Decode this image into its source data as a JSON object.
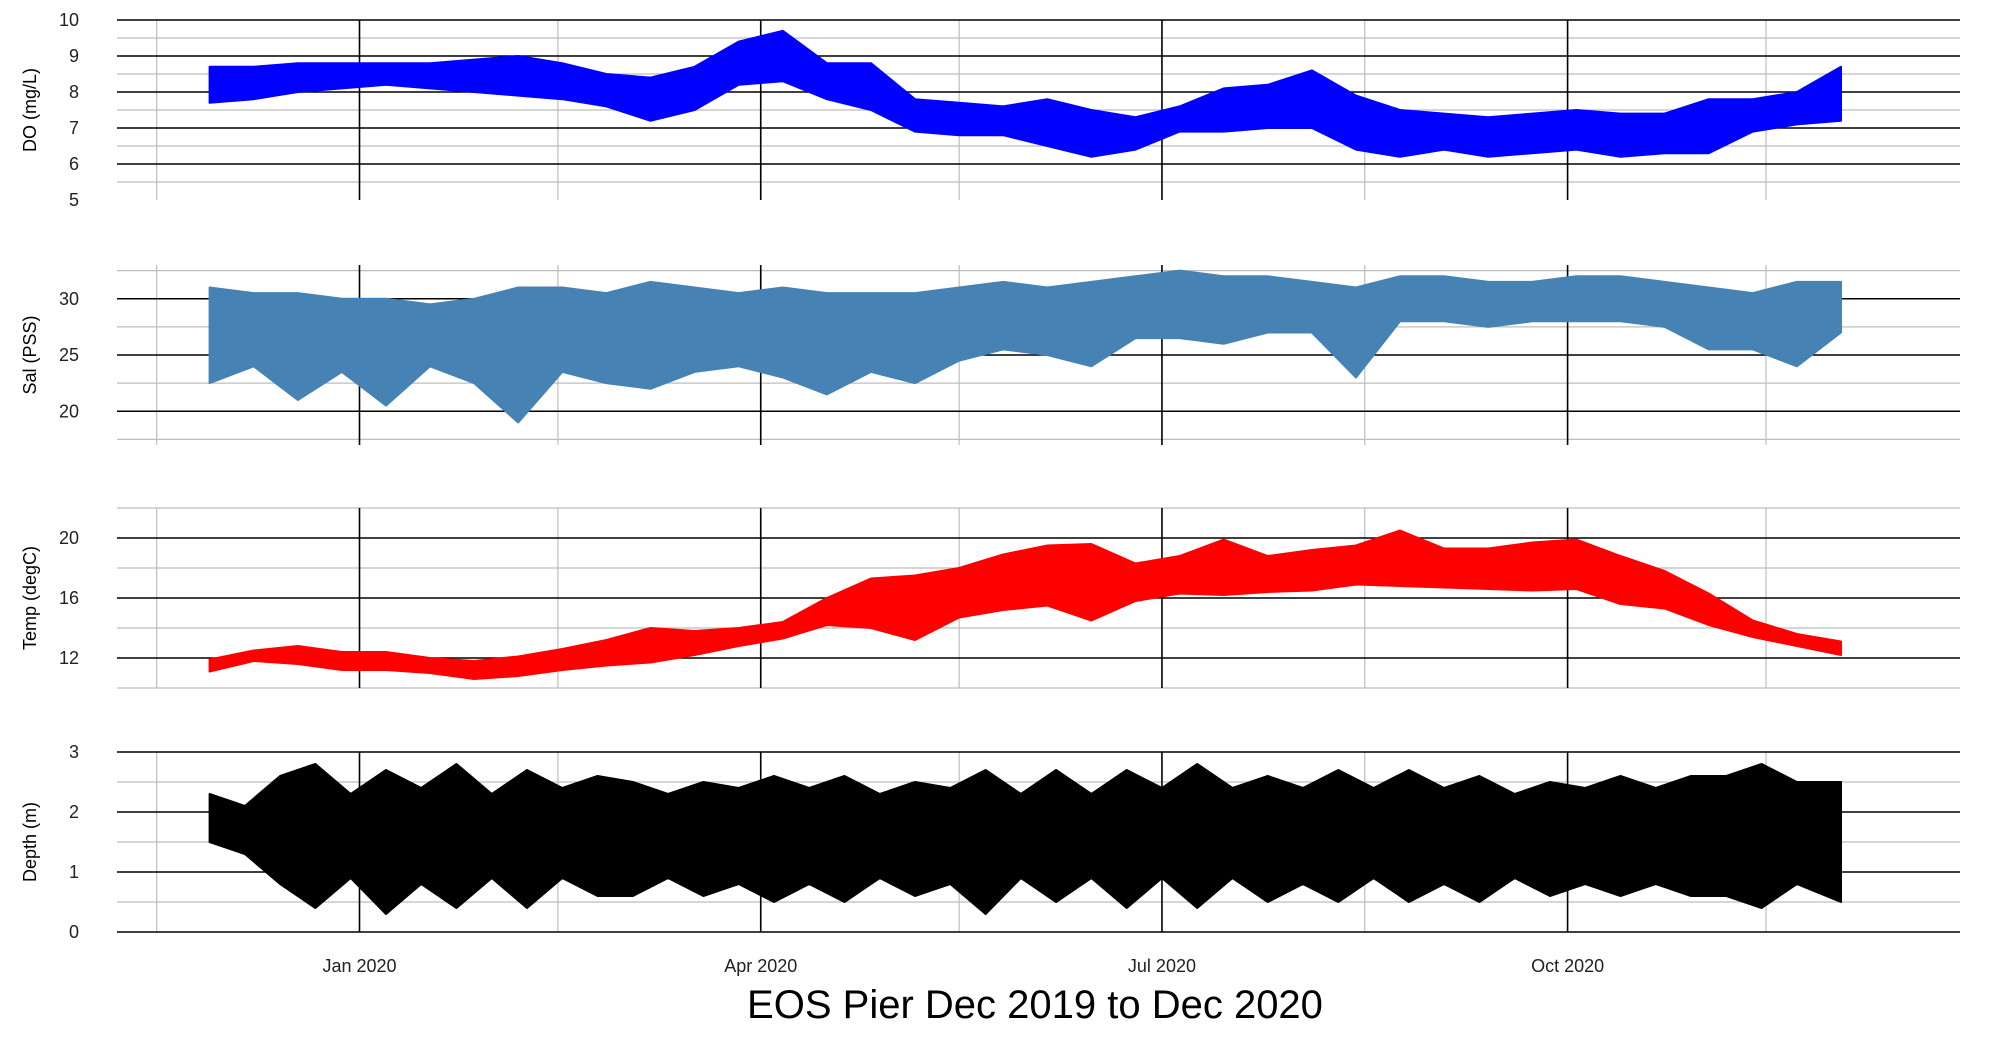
{
  "title": "EOS Pier Dec 2019 to Dec 2020",
  "colors": {
    "grid_major": "#000000",
    "grid_minor": "#bdbdbd",
    "text": "#222222"
  },
  "chart_data": [
    {
      "type": "area",
      "name": "do",
      "ylabel": "DO (mg/L)",
      "color": "#0000ff",
      "ylim": [
        5,
        10
      ],
      "yticks": [
        5,
        6,
        7,
        8,
        9,
        10
      ],
      "ymajor": [
        6,
        7,
        8,
        9,
        10
      ],
      "yminor": [
        5.5,
        6.5,
        7.5,
        8.5,
        9.5
      ],
      "x": [
        "2019-11-28",
        "2019-12-08",
        "2019-12-18",
        "2019-12-28",
        "2020-01-07",
        "2020-01-17",
        "2020-01-27",
        "2020-02-06",
        "2020-02-16",
        "2020-02-26",
        "2020-03-07",
        "2020-03-17",
        "2020-03-27",
        "2020-04-06",
        "2020-04-16",
        "2020-04-26",
        "2020-05-06",
        "2020-05-16",
        "2020-05-26",
        "2020-06-05",
        "2020-06-15",
        "2020-06-25",
        "2020-07-05",
        "2020-07-15",
        "2020-07-25",
        "2020-08-04",
        "2020-08-14",
        "2020-08-24",
        "2020-09-03",
        "2020-09-13",
        "2020-09-23",
        "2020-10-03",
        "2020-10-13",
        "2020-10-23",
        "2020-11-02",
        "2020-11-12",
        "2020-11-22",
        "2020-12-02"
      ],
      "y_min": [
        7.7,
        7.8,
        8.0,
        8.1,
        8.2,
        8.1,
        8.0,
        7.9,
        7.8,
        7.6,
        7.2,
        7.5,
        8.2,
        8.3,
        7.8,
        7.5,
        6.9,
        6.8,
        6.8,
        6.5,
        6.2,
        6.4,
        6.9,
        6.9,
        7.0,
        7.0,
        6.4,
        6.2,
        6.4,
        6.2,
        6.3,
        6.4,
        6.2,
        6.3,
        6.3,
        6.9,
        7.1,
        7.2
      ],
      "y_max": [
        8.7,
        8.7,
        8.8,
        8.8,
        8.8,
        8.8,
        8.9,
        9.0,
        8.8,
        8.5,
        8.4,
        8.7,
        9.4,
        9.7,
        8.8,
        8.8,
        7.8,
        7.7,
        7.6,
        7.8,
        7.5,
        7.3,
        7.6,
        8.1,
        8.2,
        8.6,
        7.9,
        7.5,
        7.4,
        7.3,
        7.4,
        7.5,
        7.4,
        7.4,
        7.8,
        7.8,
        8.0,
        8.7
      ]
    },
    {
      "type": "area",
      "name": "sal",
      "ylabel": "Sal (PSS)",
      "color": "#4682b4",
      "ylim": [
        17,
        33
      ],
      "yticks": [
        20,
        25,
        30
      ],
      "ymajor": [
        20,
        25,
        30
      ],
      "yminor": [
        17.5,
        22.5,
        27.5,
        32.5
      ],
      "x": [
        "2019-11-28",
        "2019-12-08",
        "2019-12-18",
        "2019-12-28",
        "2020-01-07",
        "2020-01-17",
        "2020-01-27",
        "2020-02-06",
        "2020-02-16",
        "2020-02-26",
        "2020-03-07",
        "2020-03-17",
        "2020-03-27",
        "2020-04-06",
        "2020-04-16",
        "2020-04-26",
        "2020-05-06",
        "2020-05-16",
        "2020-05-26",
        "2020-06-05",
        "2020-06-15",
        "2020-06-25",
        "2020-07-05",
        "2020-07-15",
        "2020-07-25",
        "2020-08-04",
        "2020-08-14",
        "2020-08-24",
        "2020-09-03",
        "2020-09-13",
        "2020-09-23",
        "2020-10-03",
        "2020-10-13",
        "2020-10-23",
        "2020-11-02",
        "2020-11-12",
        "2020-11-22",
        "2020-12-02"
      ],
      "y_min": [
        22.5,
        24.0,
        21.0,
        23.5,
        20.5,
        24.0,
        22.5,
        19.0,
        23.5,
        22.5,
        22.0,
        23.5,
        24.0,
        23.0,
        21.5,
        23.5,
        22.5,
        24.5,
        25.5,
        25.0,
        24.0,
        26.5,
        26.5,
        26.0,
        27.0,
        27.0,
        23.0,
        28.0,
        28.0,
        27.5,
        28.0,
        28.0,
        28.0,
        27.5,
        25.5,
        25.5,
        24.0,
        27.0
      ],
      "y_max": [
        31.0,
        30.5,
        30.5,
        30.0,
        30.0,
        29.5,
        30.0,
        31.0,
        31.0,
        30.5,
        31.5,
        31.0,
        30.5,
        31.0,
        30.5,
        30.5,
        30.5,
        31.0,
        31.5,
        31.0,
        31.5,
        32.0,
        32.5,
        32.0,
        32.0,
        31.5,
        31.0,
        32.0,
        32.0,
        31.5,
        31.5,
        32.0,
        32.0,
        31.5,
        31.0,
        30.5,
        31.5,
        31.5
      ]
    },
    {
      "type": "area",
      "name": "temp",
      "ylabel": "Temp (degC)",
      "color": "#ff0000",
      "ylim": [
        10,
        22
      ],
      "yticks": [
        12,
        16,
        20
      ],
      "ymajor": [
        12,
        16,
        20
      ],
      "yminor": [
        10,
        14,
        18,
        22
      ],
      "x": [
        "2019-11-28",
        "2019-12-08",
        "2019-12-18",
        "2019-12-28",
        "2020-01-07",
        "2020-01-17",
        "2020-01-27",
        "2020-02-06",
        "2020-02-16",
        "2020-02-26",
        "2020-03-07",
        "2020-03-17",
        "2020-03-27",
        "2020-04-06",
        "2020-04-16",
        "2020-04-26",
        "2020-05-06",
        "2020-05-16",
        "2020-05-26",
        "2020-06-05",
        "2020-06-15",
        "2020-06-25",
        "2020-07-05",
        "2020-07-15",
        "2020-07-25",
        "2020-08-04",
        "2020-08-14",
        "2020-08-24",
        "2020-09-03",
        "2020-09-13",
        "2020-09-23",
        "2020-10-03",
        "2020-10-13",
        "2020-10-23",
        "2020-11-02",
        "2020-11-12",
        "2020-11-22",
        "2020-12-02"
      ],
      "y_min": [
        11.1,
        11.8,
        11.6,
        11.2,
        11.2,
        11.0,
        10.6,
        10.8,
        11.2,
        11.5,
        11.7,
        12.2,
        12.8,
        13.3,
        14.2,
        14.0,
        13.2,
        14.7,
        15.2,
        15.5,
        14.5,
        15.8,
        16.3,
        16.2,
        16.4,
        16.5,
        16.9,
        16.8,
        16.7,
        16.6,
        16.5,
        16.6,
        15.6,
        15.3,
        14.2,
        13.4,
        12.8,
        12.2
      ],
      "y_max": [
        11.9,
        12.5,
        12.8,
        12.4,
        12.4,
        12.0,
        11.8,
        12.1,
        12.6,
        13.2,
        14.0,
        13.8,
        14.0,
        14.4,
        16.0,
        17.3,
        17.5,
        18.0,
        18.9,
        19.5,
        19.6,
        18.3,
        18.8,
        19.9,
        18.8,
        19.2,
        19.5,
        20.5,
        19.3,
        19.3,
        19.7,
        19.9,
        18.8,
        17.8,
        16.3,
        14.5,
        13.6,
        13.1
      ]
    },
    {
      "type": "area",
      "name": "depth",
      "ylabel": "Depth (m)",
      "color": "#000000",
      "ylim": [
        0,
        3
      ],
      "yticks": [
        0,
        1,
        2,
        3
      ],
      "ymajor": [
        0,
        1,
        2,
        3
      ],
      "yminor": [
        0.5,
        1.5,
        2.5
      ],
      "x": [
        "2019-11-28",
        "2019-12-06",
        "2019-12-14",
        "2019-12-22",
        "2019-12-30",
        "2020-01-07",
        "2020-01-15",
        "2020-01-23",
        "2020-01-31",
        "2020-02-08",
        "2020-02-16",
        "2020-02-24",
        "2020-03-03",
        "2020-03-11",
        "2020-03-19",
        "2020-03-27",
        "2020-04-04",
        "2020-04-12",
        "2020-04-20",
        "2020-04-28",
        "2020-05-06",
        "2020-05-14",
        "2020-05-22",
        "2020-05-30",
        "2020-06-07",
        "2020-06-15",
        "2020-06-23",
        "2020-07-01",
        "2020-07-09",
        "2020-07-17",
        "2020-07-25",
        "2020-08-02",
        "2020-08-10",
        "2020-08-18",
        "2020-08-26",
        "2020-09-03",
        "2020-09-11",
        "2020-09-19",
        "2020-09-27",
        "2020-10-05",
        "2020-10-13",
        "2020-10-21",
        "2020-10-29",
        "2020-11-06",
        "2020-11-14",
        "2020-11-22",
        "2020-12-02"
      ],
      "y_min": [
        1.5,
        1.3,
        0.8,
        0.4,
        0.9,
        0.3,
        0.8,
        0.4,
        0.9,
        0.4,
        0.9,
        0.6,
        0.6,
        0.9,
        0.6,
        0.8,
        0.5,
        0.8,
        0.5,
        0.9,
        0.6,
        0.8,
        0.3,
        0.9,
        0.5,
        0.9,
        0.4,
        0.9,
        0.4,
        0.9,
        0.5,
        0.8,
        0.5,
        0.9,
        0.5,
        0.8,
        0.5,
        0.9,
        0.6,
        0.8,
        0.6,
        0.8,
        0.6,
        0.6,
        0.4,
        0.8,
        0.5
      ],
      "y_max": [
        2.3,
        2.1,
        2.6,
        2.8,
        2.3,
        2.7,
        2.4,
        2.8,
        2.3,
        2.7,
        2.4,
        2.6,
        2.5,
        2.3,
        2.5,
        2.4,
        2.6,
        2.4,
        2.6,
        2.3,
        2.5,
        2.4,
        2.7,
        2.3,
        2.7,
        2.3,
        2.7,
        2.4,
        2.8,
        2.4,
        2.6,
        2.4,
        2.7,
        2.4,
        2.7,
        2.4,
        2.6,
        2.3,
        2.5,
        2.4,
        2.6,
        2.4,
        2.6,
        2.6,
        2.8,
        2.5,
        2.5
      ]
    }
  ],
  "x_axis": {
    "xlim": [
      "2019-11-07",
      "2020-12-29"
    ],
    "major_ticks": [
      {
        "date": "2020-01-01",
        "label": "Jan 2020"
      },
      {
        "date": "2020-04-01",
        "label": "Apr 2020"
      },
      {
        "date": "2020-07-01",
        "label": "Jul 2020"
      },
      {
        "date": "2020-10-01",
        "label": "Oct 2020"
      }
    ],
    "minor_ticks": [
      "2019-11-16",
      "2020-02-15",
      "2020-05-16",
      "2020-08-16",
      "2020-11-15"
    ]
  }
}
